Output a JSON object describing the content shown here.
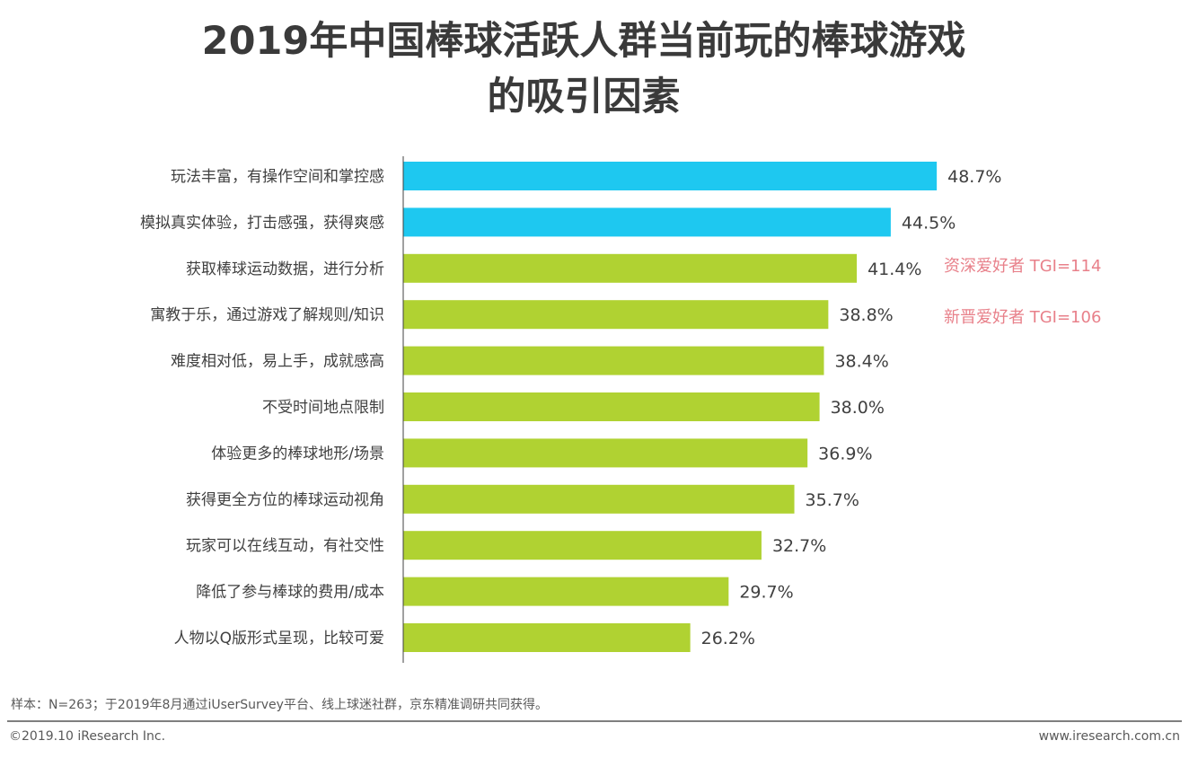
{
  "chart_data": {
    "type": "bar",
    "orientation": "horizontal",
    "title": "2019年中国棒球活跃人群当前玩的棒球游戏的吸引因素",
    "title_lines": [
      "2019年中国棒球活跃人群当前玩的棒球游戏",
      "的吸引因素"
    ],
    "categories": [
      "玩法丰富，有操作空间和掌控感",
      "模拟真实体验，打击感强，获得爽感",
      "获取棒球运动数据，进行分析",
      "寓教于乐，通过游戏了解规则/知识",
      "难度相对低，易上手，成就感高",
      "不受时间地点限制",
      "体验更多的棒球地形/场景",
      "获得更全方位的棒球运动视角",
      "玩家可以在线互动，有社交性",
      "降低了参与棒球的费用/成本",
      "人物以Q版形式呈现，比较可爱"
    ],
    "values": [
      48.7,
      44.5,
      41.4,
      38.8,
      38.4,
      38.0,
      36.9,
      35.7,
      32.7,
      29.7,
      26.2
    ],
    "value_labels": [
      "48.7%",
      "44.5%",
      "41.4%",
      "38.8%",
      "38.4%",
      "38.0%",
      "36.9%",
      "35.7%",
      "32.7%",
      "29.7%",
      "26.2%"
    ],
    "highlight_count": 2,
    "colors": {
      "highlight": "#1ec8f0",
      "default": "#b0d232",
      "annotation": "#e8808a"
    },
    "annotations": [
      "资深爱好者 TGI=114",
      "新晋爱好者 TGI=106"
    ],
    "xlim": [
      0,
      50
    ],
    "grid": false
  },
  "footer": {
    "note": "样本：N=263；于2019年8月通过iUserSurvey平台、线上球迷社群，京东精准调研共同获得。",
    "copyright": "©2019.10 iResearch Inc.",
    "website": "www.iresearch.com.cn"
  }
}
